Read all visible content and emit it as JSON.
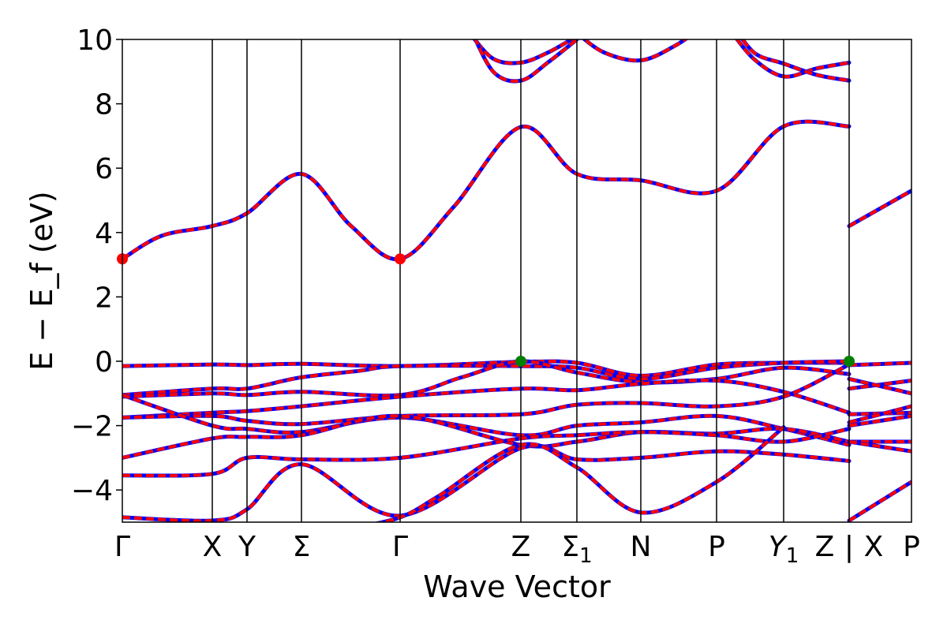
{
  "chart_data": {
    "type": "line",
    "title": "",
    "xlabel": "Wave Vector",
    "ylabel": "E − E_f (eV)",
    "ylim": [
      -5,
      10
    ],
    "yticks": [
      -4,
      -2,
      0,
      2,
      4,
      6,
      8,
      10
    ],
    "ytick_labels": [
      "−4",
      "−2",
      "0",
      "2",
      "4",
      "6",
      "8",
      "10"
    ],
    "grid": false,
    "xlim": [
      0,
      1
    ],
    "kpoint_positions": [
      0,
      0.114,
      0.158,
      0.227,
      0.352,
      0.505,
      0.576,
      0.657,
      0.753,
      0.838,
      0.921,
      1.0
    ],
    "kpoint_labels": [
      {
        "x": 0,
        "text": "Γ"
      },
      {
        "x": 0.114,
        "text": "X"
      },
      {
        "x": 0.158,
        "text": "Y"
      },
      {
        "x": 0.227,
        "text": "Σ"
      },
      {
        "x": 0.352,
        "text": "Γ"
      },
      {
        "x": 0.505,
        "text": "Z"
      },
      {
        "x": 0.576,
        "text": "Σ",
        "sub": "1"
      },
      {
        "x": 0.657,
        "text": "N"
      },
      {
        "x": 0.753,
        "text": "P"
      },
      {
        "x": 0.838,
        "text": "Y",
        "sub": "1"
      },
      {
        "x": 0.89,
        "text": "Z"
      },
      {
        "x": 0.921,
        "text": "|"
      },
      {
        "x": 0.952,
        "text": "X"
      },
      {
        "x": 1.0,
        "text": "P"
      }
    ],
    "band_colors": {
      "dft": "#ff0000",
      "interp": "#0000ff"
    },
    "series": [
      {
        "x": [
          0,
          0.05,
          0.114,
          0.158,
          0.227,
          0.29,
          0.352,
          0.42,
          0.505,
          0.576,
          0.657,
          0.753,
          0.838,
          0.921
        ],
        "y": [
          3.18,
          3.9,
          4.2,
          4.6,
          5.82,
          4.2,
          3.18,
          4.8,
          7.28,
          5.82,
          5.62,
          5.3,
          7.3,
          7.3
        ]
      },
      {
        "x": [
          0.921,
          1.0
        ],
        "y": [
          4.2,
          5.3
        ]
      },
      {
        "x": [
          0.44,
          0.47,
          0.505,
          0.54,
          0.576
        ],
        "y": [
          10.2,
          9.4,
          9.28,
          9.6,
          10.1
        ]
      },
      {
        "x": [
          0.44,
          0.47,
          0.505,
          0.54,
          0.576
        ],
        "y": [
          10.4,
          9.0,
          8.72,
          9.3,
          10.0
        ]
      },
      {
        "x": [
          0.576,
          0.61,
          0.657,
          0.7,
          0.73
        ],
        "y": [
          10.2,
          9.6,
          9.35,
          9.8,
          10.3
        ]
      },
      {
        "x": [
          0.77,
          0.8,
          0.838,
          0.88,
          0.921
        ],
        "y": [
          10.3,
          9.4,
          8.85,
          9.1,
          9.28
        ]
      },
      {
        "x": [
          0.77,
          0.8,
          0.838,
          0.88,
          0.921
        ],
        "y": [
          10.6,
          9.6,
          9.25,
          8.9,
          8.72
        ]
      },
      {
        "x": [
          0,
          0.114,
          0.158,
          0.227,
          0.352,
          0.505,
          0.576,
          0.657,
          0.753,
          0.838,
          0.921
        ],
        "y": [
          -0.15,
          -0.1,
          -0.12,
          -0.08,
          -0.15,
          -0.02,
          -0.05,
          -0.45,
          -0.1,
          -0.05,
          -0.05
        ]
      },
      {
        "x": [
          0.921,
          1.0
        ],
        "y": [
          -0.12,
          -0.05
        ]
      },
      {
        "x": [
          0,
          0.114,
          0.158,
          0.227,
          0.3,
          0.352,
          0.505,
          0.576,
          0.657,
          0.753,
          0.838,
          0.921
        ],
        "y": [
          -1.05,
          -0.85,
          -0.85,
          -0.5,
          -0.3,
          -0.15,
          -0.15,
          -0.2,
          -0.55,
          -0.2,
          -0.05,
          0.0
        ]
      },
      {
        "x": [
          0.921,
          1.0
        ],
        "y": [
          -0.85,
          -0.6
        ]
      },
      {
        "x": [
          0,
          0.114,
          0.158,
          0.227,
          0.352,
          0.43,
          0.505,
          0.576,
          0.657,
          0.753,
          0.838,
          0.921
        ],
        "y": [
          -1.1,
          -1.0,
          -1.05,
          -0.95,
          -1.05,
          -0.5,
          0.0,
          -0.35,
          -0.65,
          -0.55,
          -0.2,
          -0.4
        ]
      },
      {
        "x": [
          0.921,
          1.0
        ],
        "y": [
          -0.55,
          -1.0
        ]
      },
      {
        "x": [
          0,
          0.114,
          0.158,
          0.227,
          0.352,
          0.505,
          0.576,
          0.657,
          0.753,
          0.838,
          0.921
        ],
        "y": [
          -1.75,
          -1.6,
          -1.55,
          -1.4,
          -1.1,
          -0.85,
          -0.9,
          -0.7,
          -0.6,
          -0.95,
          -1.6
        ]
      },
      {
        "x": [
          0.921,
          1.0
        ],
        "y": [
          -1.65,
          -1.6
        ]
      },
      {
        "x": [
          0,
          0.114,
          0.158,
          0.227,
          0.352,
          0.505,
          0.576,
          0.657,
          0.753,
          0.838,
          0.921
        ],
        "y": [
          -1.75,
          -1.7,
          -1.85,
          -1.95,
          -1.7,
          -1.65,
          -1.35,
          -1.3,
          -1.4,
          -1.1,
          -0.1
        ]
      },
      {
        "x": [
          0.921,
          1.0
        ],
        "y": [
          -1.9,
          -1.4
        ]
      },
      {
        "x": [
          0,
          0.114,
          0.158,
          0.227,
          0.352,
          0.505,
          0.576,
          0.657,
          0.753,
          0.838,
          0.921
        ],
        "y": [
          -1.05,
          -2.0,
          -2.1,
          -2.2,
          -1.75,
          -2.3,
          -2.0,
          -1.9,
          -1.7,
          -2.1,
          -2.6
        ]
      },
      {
        "x": [
          0.921,
          1.0
        ],
        "y": [
          -2.0,
          -1.7
        ]
      },
      {
        "x": [
          0,
          0.114,
          0.158,
          0.227,
          0.352,
          0.505,
          0.576,
          0.657,
          0.753,
          0.838,
          0.921
        ],
        "y": [
          -3.0,
          -2.4,
          -2.35,
          -2.3,
          -1.7,
          -2.6,
          -2.5,
          -2.2,
          -2.25,
          -2.1,
          -2.5
        ]
      },
      {
        "x": [
          0.921,
          1.0
        ],
        "y": [
          -2.5,
          -2.5
        ]
      },
      {
        "x": [
          0,
          0.114,
          0.158,
          0.227,
          0.352,
          0.505,
          0.576,
          0.657,
          0.753,
          0.838,
          0.921
        ],
        "y": [
          -3.55,
          -3.5,
          -3.0,
          -3.05,
          -3.0,
          -2.4,
          -2.3,
          -2.2,
          -2.3,
          -2.5,
          -2.1
        ]
      },
      {
        "x": [
          0.921,
          1.0
        ],
        "y": [
          -2.5,
          -2.8
        ]
      },
      {
        "x": [
          0,
          0.114,
          0.158,
          0.227,
          0.352,
          0.505,
          0.576,
          0.657,
          0.753,
          0.838,
          0.921
        ],
        "y": [
          -4.85,
          -4.95,
          -4.6,
          -3.2,
          -4.8,
          -2.7,
          -3.05,
          -3.0,
          -2.8,
          -2.9,
          -3.1
        ]
      },
      {
        "x": [
          0.921,
          1.0
        ],
        "y": [
          -4.95,
          -3.75
        ]
      },
      {
        "x": [
          0.29,
          0.352,
          0.4,
          0.505,
          0.576,
          0.657,
          0.753,
          0.838
        ],
        "y": [
          -5.2,
          -4.85,
          -4.2,
          -2.6,
          -3.3,
          -4.7,
          -3.75,
          -2.05
        ]
      }
    ],
    "highlighted_points": [
      {
        "x": 0,
        "y": 3.18,
        "color": "#ff0000"
      },
      {
        "x": 0.352,
        "y": 3.18,
        "color": "#ff0000"
      },
      {
        "x": 0.505,
        "y": 0.0,
        "color": "#008000"
      },
      {
        "x": 0.921,
        "y": 0.0,
        "color": "#008000"
      }
    ]
  }
}
